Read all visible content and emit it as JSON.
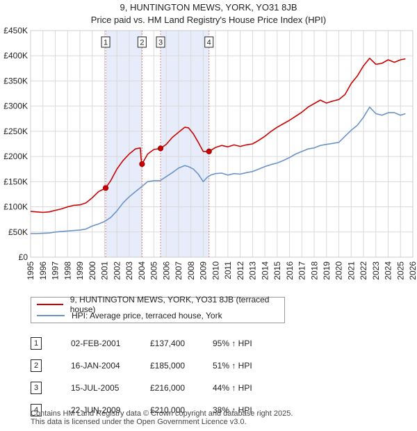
{
  "chart_data": {
    "type": "line",
    "title": "9, HUNTINGTON MEWS, YORK, YO31 8JB",
    "subtitle": "Price paid vs. HM Land Registry's House Price Index (HPI)",
    "xlim": [
      1995,
      2026
    ],
    "ylim": [
      0,
      450000
    ],
    "x_ticks": [
      "1995",
      "1996",
      "1997",
      "1998",
      "1999",
      "2000",
      "2001",
      "2002",
      "2003",
      "2004",
      "2005",
      "2006",
      "2007",
      "2008",
      "2009",
      "2010",
      "2011",
      "2012",
      "2013",
      "2014",
      "2015",
      "2016",
      "2017",
      "2018",
      "2019",
      "2020",
      "2021",
      "2022",
      "2023",
      "2024",
      "2025",
      "2026"
    ],
    "y_ticks": [
      {
        "value": 0,
        "label": "£0"
      },
      {
        "value": 50000,
        "label": "£50K"
      },
      {
        "value": 100000,
        "label": "£100K"
      },
      {
        "value": 150000,
        "label": "£150K"
      },
      {
        "value": 200000,
        "label": "£200K"
      },
      {
        "value": 250000,
        "label": "£250K"
      },
      {
        "value": 300000,
        "label": "£300K"
      },
      {
        "value": 350000,
        "label": "£350K"
      },
      {
        "value": 400000,
        "label": "£400K"
      },
      {
        "value": 450000,
        "label": "£450K"
      }
    ],
    "grid": true,
    "shaded_periods": [
      [
        2001.09,
        2004.04
      ],
      [
        2005.54,
        2009.47
      ]
    ],
    "series": [
      {
        "name": "9, HUNTINGTON MEWS, YORK, YO31 8JB (terraced house)",
        "color": "#cc0000",
        "x": [
          1995.0,
          1995.5,
          1996.0,
          1996.5,
          1997.0,
          1997.5,
          1998.0,
          1998.5,
          1999.0,
          1999.5,
          2000.0,
          2000.5,
          2001.09,
          2001.5,
          2002.0,
          2002.5,
          2003.0,
          2003.5,
          2003.9,
          2003.96,
          2004.04,
          2004.5,
          2005.0,
          2005.54,
          2006.0,
          2006.5,
          2007.0,
          2007.5,
          2007.8,
          2008.2,
          2008.6,
          2009.0,
          2009.47,
          2010.0,
          2010.5,
          2011.0,
          2011.5,
          2012.0,
          2012.5,
          2013.0,
          2013.5,
          2014.0,
          2014.5,
          2015.0,
          2015.5,
          2016.0,
          2016.5,
          2017.0,
          2017.5,
          2018.0,
          2018.5,
          2019.0,
          2019.5,
          2020.0,
          2020.5,
          2021.0,
          2021.5,
          2022.0,
          2022.5,
          2023.0,
          2023.5,
          2024.0,
          2024.5,
          2025.0,
          2025.4
        ],
        "y": [
          91000,
          90000,
          89000,
          90000,
          93000,
          96000,
          100000,
          103000,
          104000,
          108000,
          118000,
          130000,
          137400,
          152000,
          175000,
          192000,
          205000,
          215000,
          217000,
          195000,
          185000,
          205000,
          214000,
          216000,
          224000,
          238000,
          248000,
          258000,
          257000,
          245000,
          228000,
          210000,
          210000,
          218000,
          222000,
          219000,
          223000,
          220000,
          223000,
          225000,
          232000,
          240000,
          250000,
          258000,
          265000,
          272000,
          280000,
          288000,
          298000,
          305000,
          312000,
          306000,
          310000,
          313000,
          323000,
          345000,
          360000,
          380000,
          395000,
          383000,
          385000,
          392000,
          387000,
          392000,
          394000
        ]
      },
      {
        "name": "HPI: Average price, terraced house, York",
        "color": "#6a93c8",
        "x": [
          1995.0,
          1995.5,
          1996.0,
          1996.5,
          1997.0,
          1997.5,
          1998.0,
          1998.5,
          1999.0,
          1999.5,
          2000.0,
          2000.5,
          2001.0,
          2001.5,
          2002.0,
          2002.5,
          2003.0,
          2003.5,
          2004.0,
          2004.5,
          2005.0,
          2005.5,
          2006.0,
          2006.5,
          2007.0,
          2007.5,
          2007.8,
          2008.2,
          2008.6,
          2009.0,
          2009.3,
          2009.6,
          2010.0,
          2010.5,
          2011.0,
          2011.5,
          2012.0,
          2012.5,
          2013.0,
          2013.5,
          2014.0,
          2014.5,
          2015.0,
          2015.5,
          2016.0,
          2016.5,
          2017.0,
          2017.5,
          2018.0,
          2018.5,
          2019.0,
          2019.5,
          2020.0,
          2020.5,
          2021.0,
          2021.5,
          2022.0,
          2022.5,
          2023.0,
          2023.5,
          2024.0,
          2024.5,
          2025.0,
          2025.4
        ],
        "y": [
          47000,
          47000,
          47500,
          48000,
          50000,
          51000,
          52000,
          53000,
          54000,
          56000,
          62000,
          66000,
          71000,
          79000,
          92000,
          108000,
          120000,
          130000,
          140000,
          150000,
          152000,
          152000,
          160000,
          168000,
          177000,
          182000,
          180000,
          175000,
          165000,
          150000,
          158000,
          163000,
          166000,
          167000,
          163000,
          166000,
          165000,
          168000,
          170000,
          175000,
          180000,
          184000,
          187000,
          192000,
          198000,
          205000,
          210000,
          215000,
          217000,
          222000,
          224000,
          226000,
          228000,
          240000,
          252000,
          262000,
          278000,
          298000,
          285000,
          282000,
          287000,
          287000,
          282000,
          285000
        ]
      }
    ],
    "markers": [
      {
        "label": "1",
        "x": 2001.09,
        "y": 137400
      },
      {
        "label": "2",
        "x": 2004.04,
        "y": 185000
      },
      {
        "label": "3",
        "x": 2005.54,
        "y": 216000
      },
      {
        "label": "4",
        "x": 2009.47,
        "y": 210000
      }
    ]
  },
  "sales": [
    {
      "num": "1",
      "date": "02-FEB-2001",
      "price": "£137,400",
      "change": "95% ↑ HPI"
    },
    {
      "num": "2",
      "date": "16-JAN-2004",
      "price": "£185,000",
      "change": "51% ↑ HPI"
    },
    {
      "num": "3",
      "date": "15-JUL-2005",
      "price": "£216,000",
      "change": "44% ↑ HPI"
    },
    {
      "num": "4",
      "date": "22-JUN-2009",
      "price": "£210,000",
      "change": "38% ↑ HPI"
    }
  ],
  "footer": {
    "line1": "Contains HM Land Registry data © Crown copyright and database right 2025.",
    "line2": "This data is licensed under the Open Government Licence v3.0."
  }
}
